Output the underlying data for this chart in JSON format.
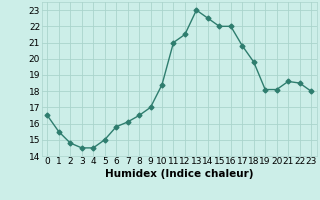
{
  "x": [
    0,
    1,
    2,
    3,
    4,
    5,
    6,
    7,
    8,
    9,
    10,
    11,
    12,
    13,
    14,
    15,
    16,
    17,
    18,
    19,
    20,
    21,
    22,
    23
  ],
  "y": [
    16.5,
    15.5,
    14.8,
    14.5,
    14.5,
    15.0,
    15.8,
    16.1,
    16.5,
    17.0,
    18.4,
    21.0,
    21.5,
    23.0,
    22.5,
    22.0,
    22.0,
    20.8,
    19.8,
    18.1,
    18.1,
    18.6,
    18.5,
    18.0
  ],
  "line_color": "#2e7d6e",
  "marker": "D",
  "marker_size": 2.5,
  "bg_color": "#cceee8",
  "grid_color": "#aad4cc",
  "xlabel": "Humidex (Indice chaleur)",
  "ylim": [
    14,
    23.5
  ],
  "xlim": [
    -0.5,
    23.5
  ],
  "yticks": [
    14,
    15,
    16,
    17,
    18,
    19,
    20,
    21,
    22,
    23
  ],
  "xticks": [
    0,
    1,
    2,
    3,
    4,
    5,
    6,
    7,
    8,
    9,
    10,
    11,
    12,
    13,
    14,
    15,
    16,
    17,
    18,
    19,
    20,
    21,
    22,
    23
  ],
  "xlabel_fontsize": 7.5,
  "tick_fontsize": 6.5,
  "line_width": 1.0
}
